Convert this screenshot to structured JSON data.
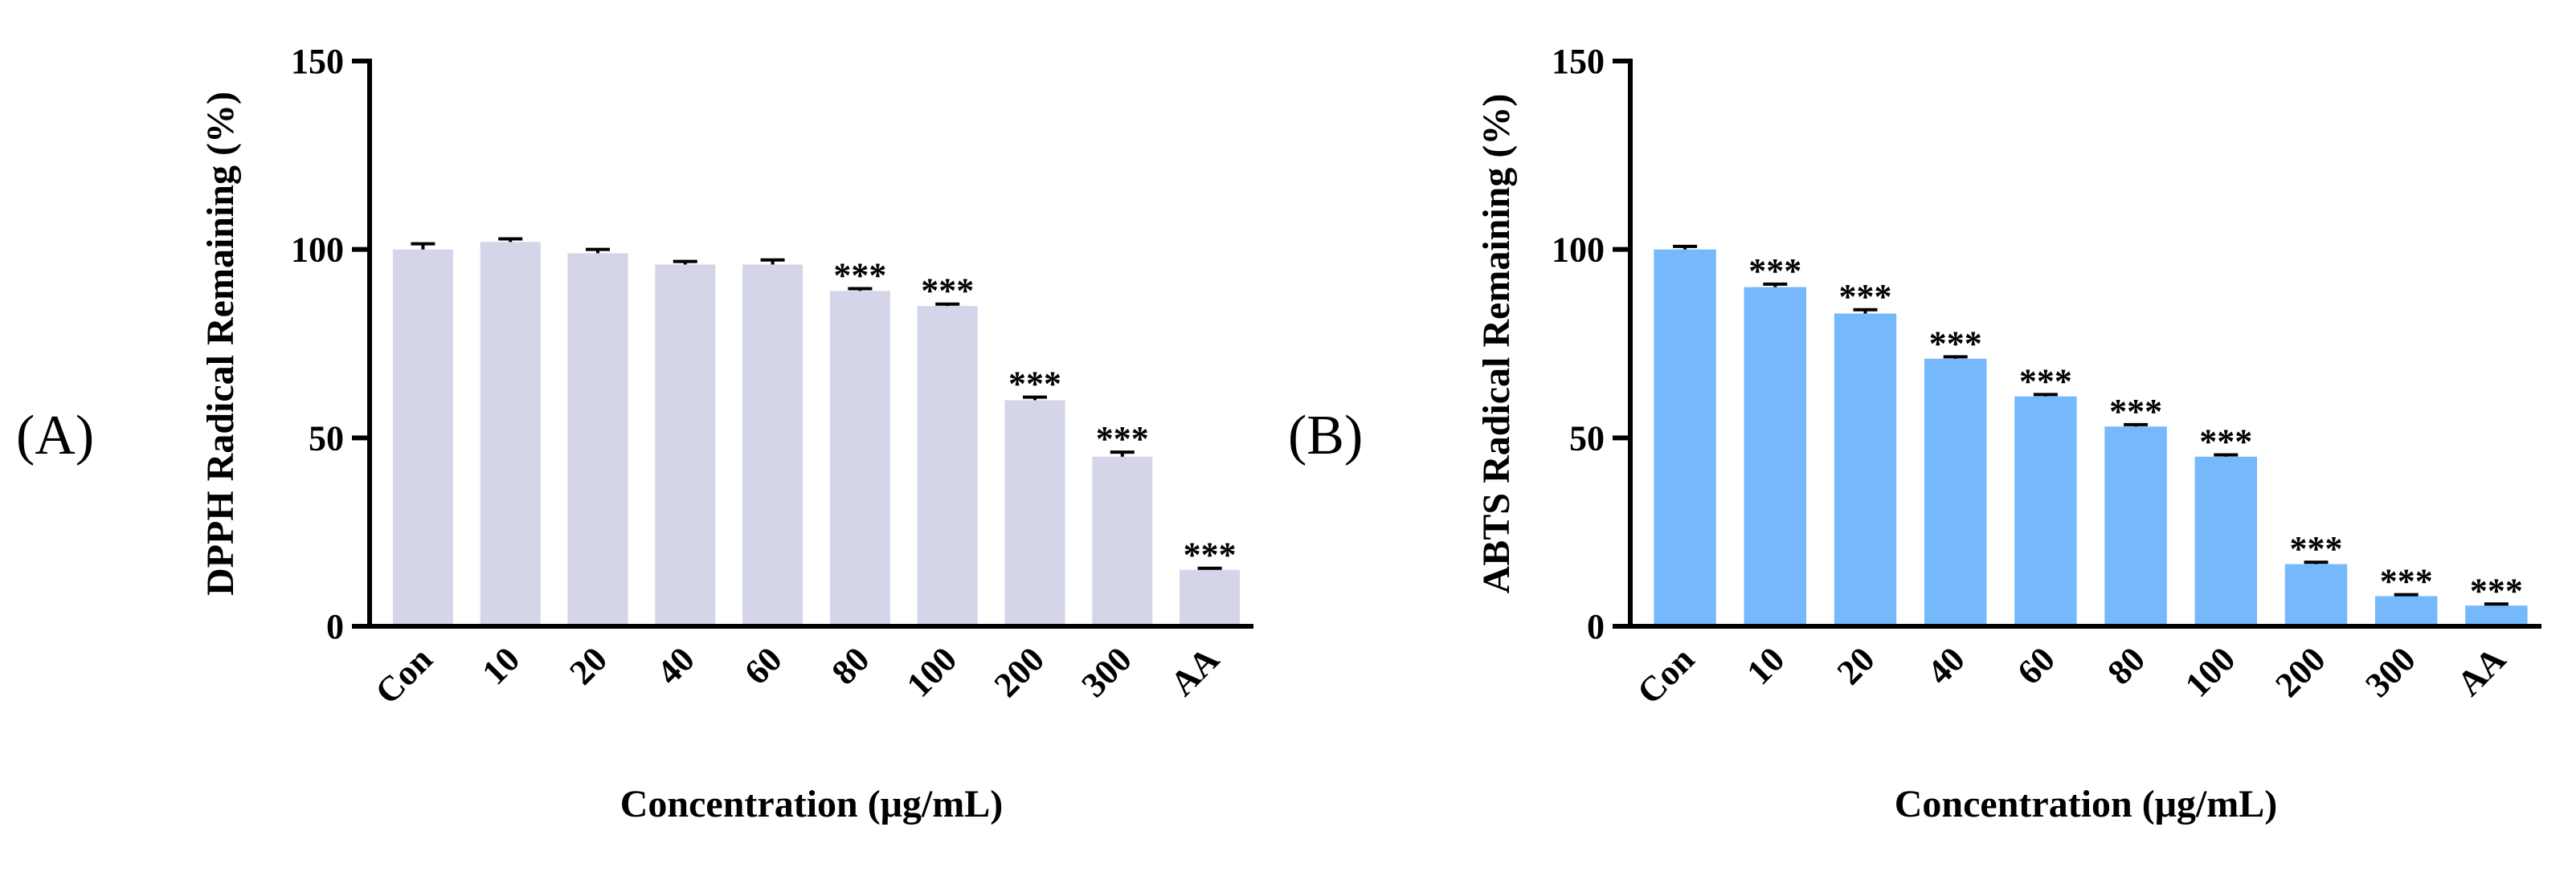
{
  "chart_data": [
    {
      "type": "bar",
      "panel_label": "(A)",
      "ylabel": "DPPH Radical Remaining (%)",
      "xlabel": "Concentration (μg/mL)",
      "ylim": [
        0,
        150
      ],
      "yticks": [
        "0",
        "50",
        "100",
        "150"
      ],
      "categories": [
        "Con",
        "10",
        "20",
        "40",
        "60",
        "80",
        "100",
        "200",
        "300",
        "AA"
      ],
      "values": [
        100,
        102,
        99,
        96,
        96,
        89,
        85,
        60,
        45,
        15
      ],
      "errors": [
        1.5,
        0.8,
        1.0,
        0.8,
        1.2,
        0.6,
        0.5,
        0.8,
        1.2,
        0.4
      ],
      "significance": [
        "",
        "",
        "",
        "",
        "",
        "***",
        "***",
        "***",
        "***",
        "***"
      ],
      "bar_color": "#d5d5e9",
      "grid": false
    },
    {
      "type": "bar",
      "panel_label": "(B)",
      "ylabel": "ABTS Radical Remaining (%)",
      "xlabel": "Concentration (μg/mL)",
      "ylim": [
        0,
        150
      ],
      "yticks": [
        "0",
        "50",
        "100",
        "150"
      ],
      "categories": [
        "Con",
        "10",
        "20",
        "40",
        "60",
        "80",
        "100",
        "200",
        "300",
        "AA"
      ],
      "values": [
        100,
        90,
        83,
        71,
        61,
        53,
        45,
        16.5,
        8,
        5.5
      ],
      "errors": [
        0.8,
        0.8,
        1.0,
        0.5,
        0.5,
        0.5,
        0.5,
        0.5,
        0.4,
        0.4
      ],
      "significance": [
        "",
        "***",
        "***",
        "***",
        "***",
        "***",
        "***",
        "***",
        "***",
        "***"
      ],
      "bar_color": "#75b8fc",
      "grid": false
    }
  ]
}
